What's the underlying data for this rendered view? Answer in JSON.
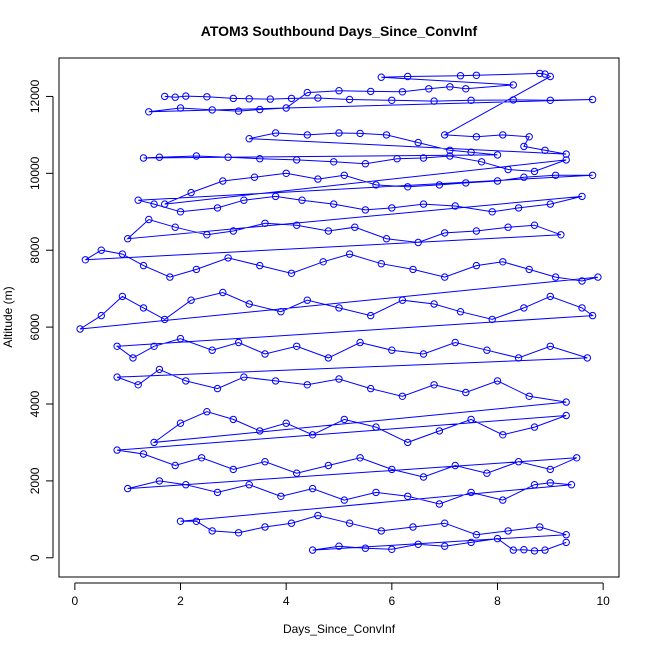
{
  "chart_data": {
    "type": "scatter",
    "title": "ATOM3 Southbound Days_Since_ConvInf",
    "xlabel": "Days_Since_ConvInf",
    "ylabel": "Altitude (m)",
    "xlim": [
      -0.3,
      10.3
    ],
    "ylim": [
      -500,
      13000
    ],
    "x_ticks": [
      0,
      2,
      4,
      6,
      8,
      10
    ],
    "y_ticks": [
      0,
      2000,
      4000,
      6000,
      8000,
      10000,
      12000
    ],
    "grid": false,
    "legend": "none",
    "color": "#0000ff",
    "marker": "open-circle",
    "connect_points": true,
    "series": [
      {
        "values": [
          [
            1.7,
            12000
          ],
          [
            1.9,
            11980
          ],
          [
            2.1,
            12010
          ],
          [
            2.5,
            11990
          ],
          [
            3.0,
            11950
          ],
          [
            3.3,
            11940
          ],
          [
            3.7,
            11930
          ],
          [
            4.1,
            11950
          ],
          [
            4.6,
            11960
          ],
          [
            5.2,
            11920
          ],
          [
            6.0,
            11900
          ],
          [
            6.8,
            11880
          ],
          [
            7.5,
            11900
          ],
          [
            8.3,
            11910
          ],
          [
            9.0,
            11900
          ],
          [
            9.8,
            11920
          ],
          [
            1.4,
            11600
          ],
          [
            2.0,
            11700
          ],
          [
            2.6,
            11650
          ],
          [
            3.1,
            11620
          ],
          [
            3.5,
            11660
          ],
          [
            4.0,
            11700
          ],
          [
            4.4,
            12100
          ],
          [
            5.0,
            12150
          ],
          [
            5.6,
            12130
          ],
          [
            6.2,
            12120
          ],
          [
            6.7,
            12200
          ],
          [
            7.1,
            12250
          ],
          [
            7.4,
            12200
          ],
          [
            8.3,
            12300
          ],
          [
            5.8,
            12500
          ],
          [
            6.3,
            12520
          ],
          [
            7.3,
            12540
          ],
          [
            7.6,
            12550
          ],
          [
            8.8,
            12600
          ],
          [
            8.9,
            12580
          ],
          [
            9.0,
            12520
          ],
          [
            7.0,
            11000
          ],
          [
            7.6,
            10950
          ],
          [
            8.1,
            11000
          ],
          [
            8.6,
            10950
          ],
          [
            8.5,
            10700
          ],
          [
            8.9,
            10600
          ],
          [
            9.3,
            10500
          ],
          [
            3.3,
            10900
          ],
          [
            3.8,
            11050
          ],
          [
            4.4,
            11000
          ],
          [
            5.0,
            11050
          ],
          [
            5.4,
            11040
          ],
          [
            5.9,
            11000
          ],
          [
            6.5,
            10800
          ],
          [
            7.1,
            10600
          ],
          [
            7.5,
            10550
          ],
          [
            8.0,
            10480
          ],
          [
            1.3,
            10400
          ],
          [
            1.6,
            10420
          ],
          [
            2.3,
            10450
          ],
          [
            2.9,
            10420
          ],
          [
            3.5,
            10380
          ],
          [
            4.2,
            10350
          ],
          [
            4.9,
            10300
          ],
          [
            5.5,
            10250
          ],
          [
            6.1,
            10380
          ],
          [
            6.6,
            10400
          ],
          [
            7.1,
            10450
          ],
          [
            7.7,
            10300
          ],
          [
            8.2,
            10100
          ],
          [
            8.7,
            10050
          ],
          [
            9.3,
            10350
          ],
          [
            1.7,
            9200
          ],
          [
            2.2,
            9500
          ],
          [
            2.8,
            9800
          ],
          [
            3.4,
            9900
          ],
          [
            4.0,
            10000
          ],
          [
            4.6,
            9850
          ],
          [
            5.1,
            9950
          ],
          [
            5.7,
            9700
          ],
          [
            6.3,
            9650
          ],
          [
            6.9,
            9700
          ],
          [
            7.4,
            9750
          ],
          [
            8.0,
            9800
          ],
          [
            8.5,
            9900
          ],
          [
            9.1,
            9950
          ],
          [
            9.8,
            9950
          ],
          [
            1.2,
            9300
          ],
          [
            1.5,
            9200
          ],
          [
            2.0,
            9000
          ],
          [
            2.7,
            9100
          ],
          [
            3.2,
            9300
          ],
          [
            3.8,
            9400
          ],
          [
            4.3,
            9300
          ],
          [
            4.9,
            9200
          ],
          [
            5.5,
            9050
          ],
          [
            6.0,
            9100
          ],
          [
            6.6,
            9200
          ],
          [
            7.2,
            9150
          ],
          [
            7.9,
            9000
          ],
          [
            8.4,
            9100
          ],
          [
            9.0,
            9200
          ],
          [
            9.6,
            9400
          ],
          [
            1.0,
            8300
          ],
          [
            1.4,
            8800
          ],
          [
            1.9,
            8600
          ],
          [
            2.5,
            8400
          ],
          [
            3.0,
            8500
          ],
          [
            3.6,
            8700
          ],
          [
            4.2,
            8650
          ],
          [
            4.8,
            8500
          ],
          [
            5.3,
            8600
          ],
          [
            5.9,
            8300
          ],
          [
            6.5,
            8200
          ],
          [
            7.0,
            8450
          ],
          [
            7.6,
            8500
          ],
          [
            8.2,
            8600
          ],
          [
            8.7,
            8650
          ],
          [
            9.2,
            8400
          ],
          [
            0.2,
            7750
          ],
          [
            0.5,
            8000
          ],
          [
            0.9,
            7900
          ],
          [
            1.3,
            7600
          ],
          [
            1.8,
            7300
          ],
          [
            2.3,
            7500
          ],
          [
            2.9,
            7800
          ],
          [
            3.5,
            7600
          ],
          [
            4.1,
            7400
          ],
          [
            4.7,
            7700
          ],
          [
            5.2,
            7900
          ],
          [
            5.8,
            7650
          ],
          [
            6.4,
            7500
          ],
          [
            7.0,
            7300
          ],
          [
            7.6,
            7600
          ],
          [
            8.1,
            7700
          ],
          [
            8.6,
            7500
          ],
          [
            9.1,
            7300
          ],
          [
            9.6,
            7200
          ],
          [
            9.9,
            7300
          ],
          [
            0.1,
            5950
          ],
          [
            0.5,
            6300
          ],
          [
            0.9,
            6800
          ],
          [
            1.3,
            6500
          ],
          [
            1.7,
            6200
          ],
          [
            2.2,
            6700
          ],
          [
            2.8,
            6900
          ],
          [
            3.3,
            6600
          ],
          [
            3.9,
            6400
          ],
          [
            4.4,
            6700
          ],
          [
            5.0,
            6500
          ],
          [
            5.6,
            6300
          ],
          [
            6.2,
            6700
          ],
          [
            6.8,
            6600
          ],
          [
            7.3,
            6400
          ],
          [
            7.9,
            6200
          ],
          [
            8.5,
            6500
          ],
          [
            9.0,
            6800
          ],
          [
            9.6,
            6500
          ],
          [
            9.8,
            6300
          ],
          [
            0.8,
            5500
          ],
          [
            1.1,
            5200
          ],
          [
            1.5,
            5500
          ],
          [
            2.0,
            5700
          ],
          [
            2.6,
            5400
          ],
          [
            3.1,
            5600
          ],
          [
            3.6,
            5300
          ],
          [
            4.2,
            5500
          ],
          [
            4.8,
            5200
          ],
          [
            5.4,
            5600
          ],
          [
            6.0,
            5400
          ],
          [
            6.6,
            5300
          ],
          [
            7.2,
            5600
          ],
          [
            7.8,
            5400
          ],
          [
            8.4,
            5200
          ],
          [
            9.0,
            5500
          ],
          [
            9.7,
            5200
          ],
          [
            0.8,
            4700
          ],
          [
            1.2,
            4500
          ],
          [
            1.6,
            4900
          ],
          [
            2.1,
            4600
          ],
          [
            2.7,
            4400
          ],
          [
            3.2,
            4700
          ],
          [
            3.8,
            4600
          ],
          [
            4.4,
            4500
          ],
          [
            5.0,
            4650
          ],
          [
            5.6,
            4400
          ],
          [
            6.2,
            4200
          ],
          [
            6.8,
            4500
          ],
          [
            7.4,
            4300
          ],
          [
            8.0,
            4600
          ],
          [
            8.6,
            4200
          ],
          [
            9.3,
            4050
          ],
          [
            1.5,
            3000
          ],
          [
            2.0,
            3500
          ],
          [
            2.5,
            3800
          ],
          [
            3.0,
            3600
          ],
          [
            3.5,
            3300
          ],
          [
            4.0,
            3500
          ],
          [
            4.5,
            3200
          ],
          [
            5.1,
            3600
          ],
          [
            5.7,
            3400
          ],
          [
            6.3,
            3000
          ],
          [
            6.9,
            3300
          ],
          [
            7.5,
            3600
          ],
          [
            8.1,
            3200
          ],
          [
            8.7,
            3400
          ],
          [
            9.3,
            3700
          ],
          [
            0.8,
            2800
          ],
          [
            1.3,
            2700
          ],
          [
            1.9,
            2400
          ],
          [
            2.4,
            2600
          ],
          [
            3.0,
            2300
          ],
          [
            3.6,
            2500
          ],
          [
            4.2,
            2200
          ],
          [
            4.8,
            2400
          ],
          [
            5.4,
            2600
          ],
          [
            6.0,
            2300
          ],
          [
            6.6,
            2100
          ],
          [
            7.2,
            2400
          ],
          [
            7.8,
            2200
          ],
          [
            8.4,
            2500
          ],
          [
            9.0,
            2300
          ],
          [
            9.5,
            2600
          ],
          [
            1.0,
            1800
          ],
          [
            1.6,
            2000
          ],
          [
            2.1,
            1900
          ],
          [
            2.7,
            1700
          ],
          [
            3.3,
            1900
          ],
          [
            3.9,
            1600
          ],
          [
            4.5,
            1800
          ],
          [
            5.1,
            1500
          ],
          [
            5.7,
            1700
          ],
          [
            6.3,
            1600
          ],
          [
            6.9,
            1400
          ],
          [
            7.5,
            1700
          ],
          [
            8.1,
            1500
          ],
          [
            8.7,
            1900
          ],
          [
            9.0,
            1950
          ],
          [
            9.4,
            1900
          ],
          [
            2.0,
            950
          ],
          [
            2.3,
            950
          ],
          [
            2.6,
            700
          ],
          [
            3.1,
            650
          ],
          [
            3.6,
            800
          ],
          [
            4.1,
            900
          ],
          [
            4.6,
            1100
          ],
          [
            5.2,
            900
          ],
          [
            5.8,
            700
          ],
          [
            6.4,
            800
          ],
          [
            7.0,
            900
          ],
          [
            7.6,
            600
          ],
          [
            8.2,
            700
          ],
          [
            8.8,
            800
          ],
          [
            9.3,
            600
          ],
          [
            4.5,
            200
          ],
          [
            5.0,
            300
          ],
          [
            5.5,
            250
          ],
          [
            6.0,
            220
          ],
          [
            6.5,
            350
          ],
          [
            7.0,
            300
          ],
          [
            7.5,
            400
          ],
          [
            8.0,
            500
          ],
          [
            8.3,
            200
          ],
          [
            8.5,
            210
          ],
          [
            8.7,
            180
          ],
          [
            8.9,
            200
          ],
          [
            9.3,
            400
          ]
        ]
      }
    ]
  }
}
